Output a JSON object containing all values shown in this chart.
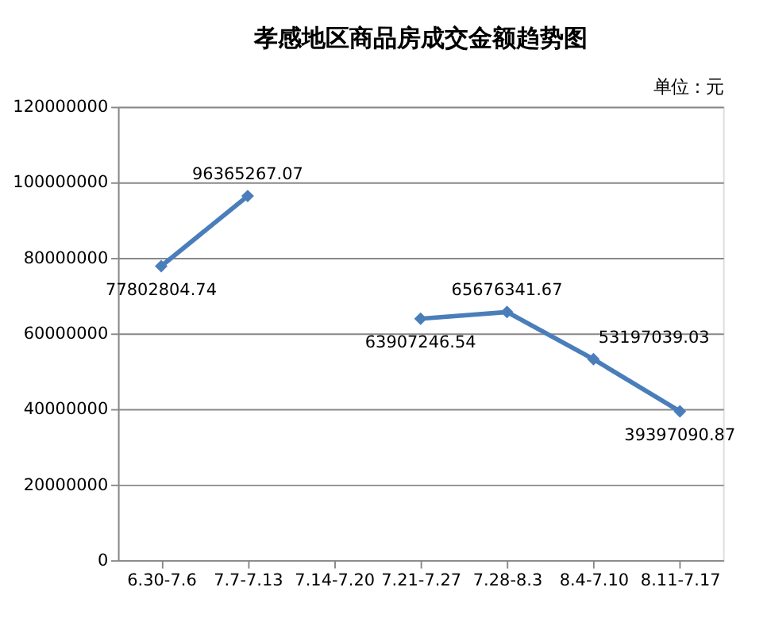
{
  "chart_data": {
    "type": "line",
    "title": "孝感地区商品房成交金额趋势图",
    "annotations": [
      "单位：元"
    ],
    "categories": [
      "6.30-7.6",
      "7.7-7.13",
      "7.14-7.20",
      "7.21-7.27",
      "7.28-8.3",
      "8.4-7.10",
      "8.11-7.17"
    ],
    "series": [
      {
        "color": "#4a7ebb",
        "values": [
          77802804.74,
          96365267.07,
          null,
          63907246.54,
          65676341.67,
          53197039.03,
          39397090.87
        ]
      }
    ],
    "ylim": [
      0,
      120000000
    ],
    "yticks": [
      0,
      20000000,
      40000000,
      60000000,
      80000000,
      100000000,
      120000000
    ],
    "grid": "y",
    "marker": "diamond",
    "data_labels": true
  }
}
